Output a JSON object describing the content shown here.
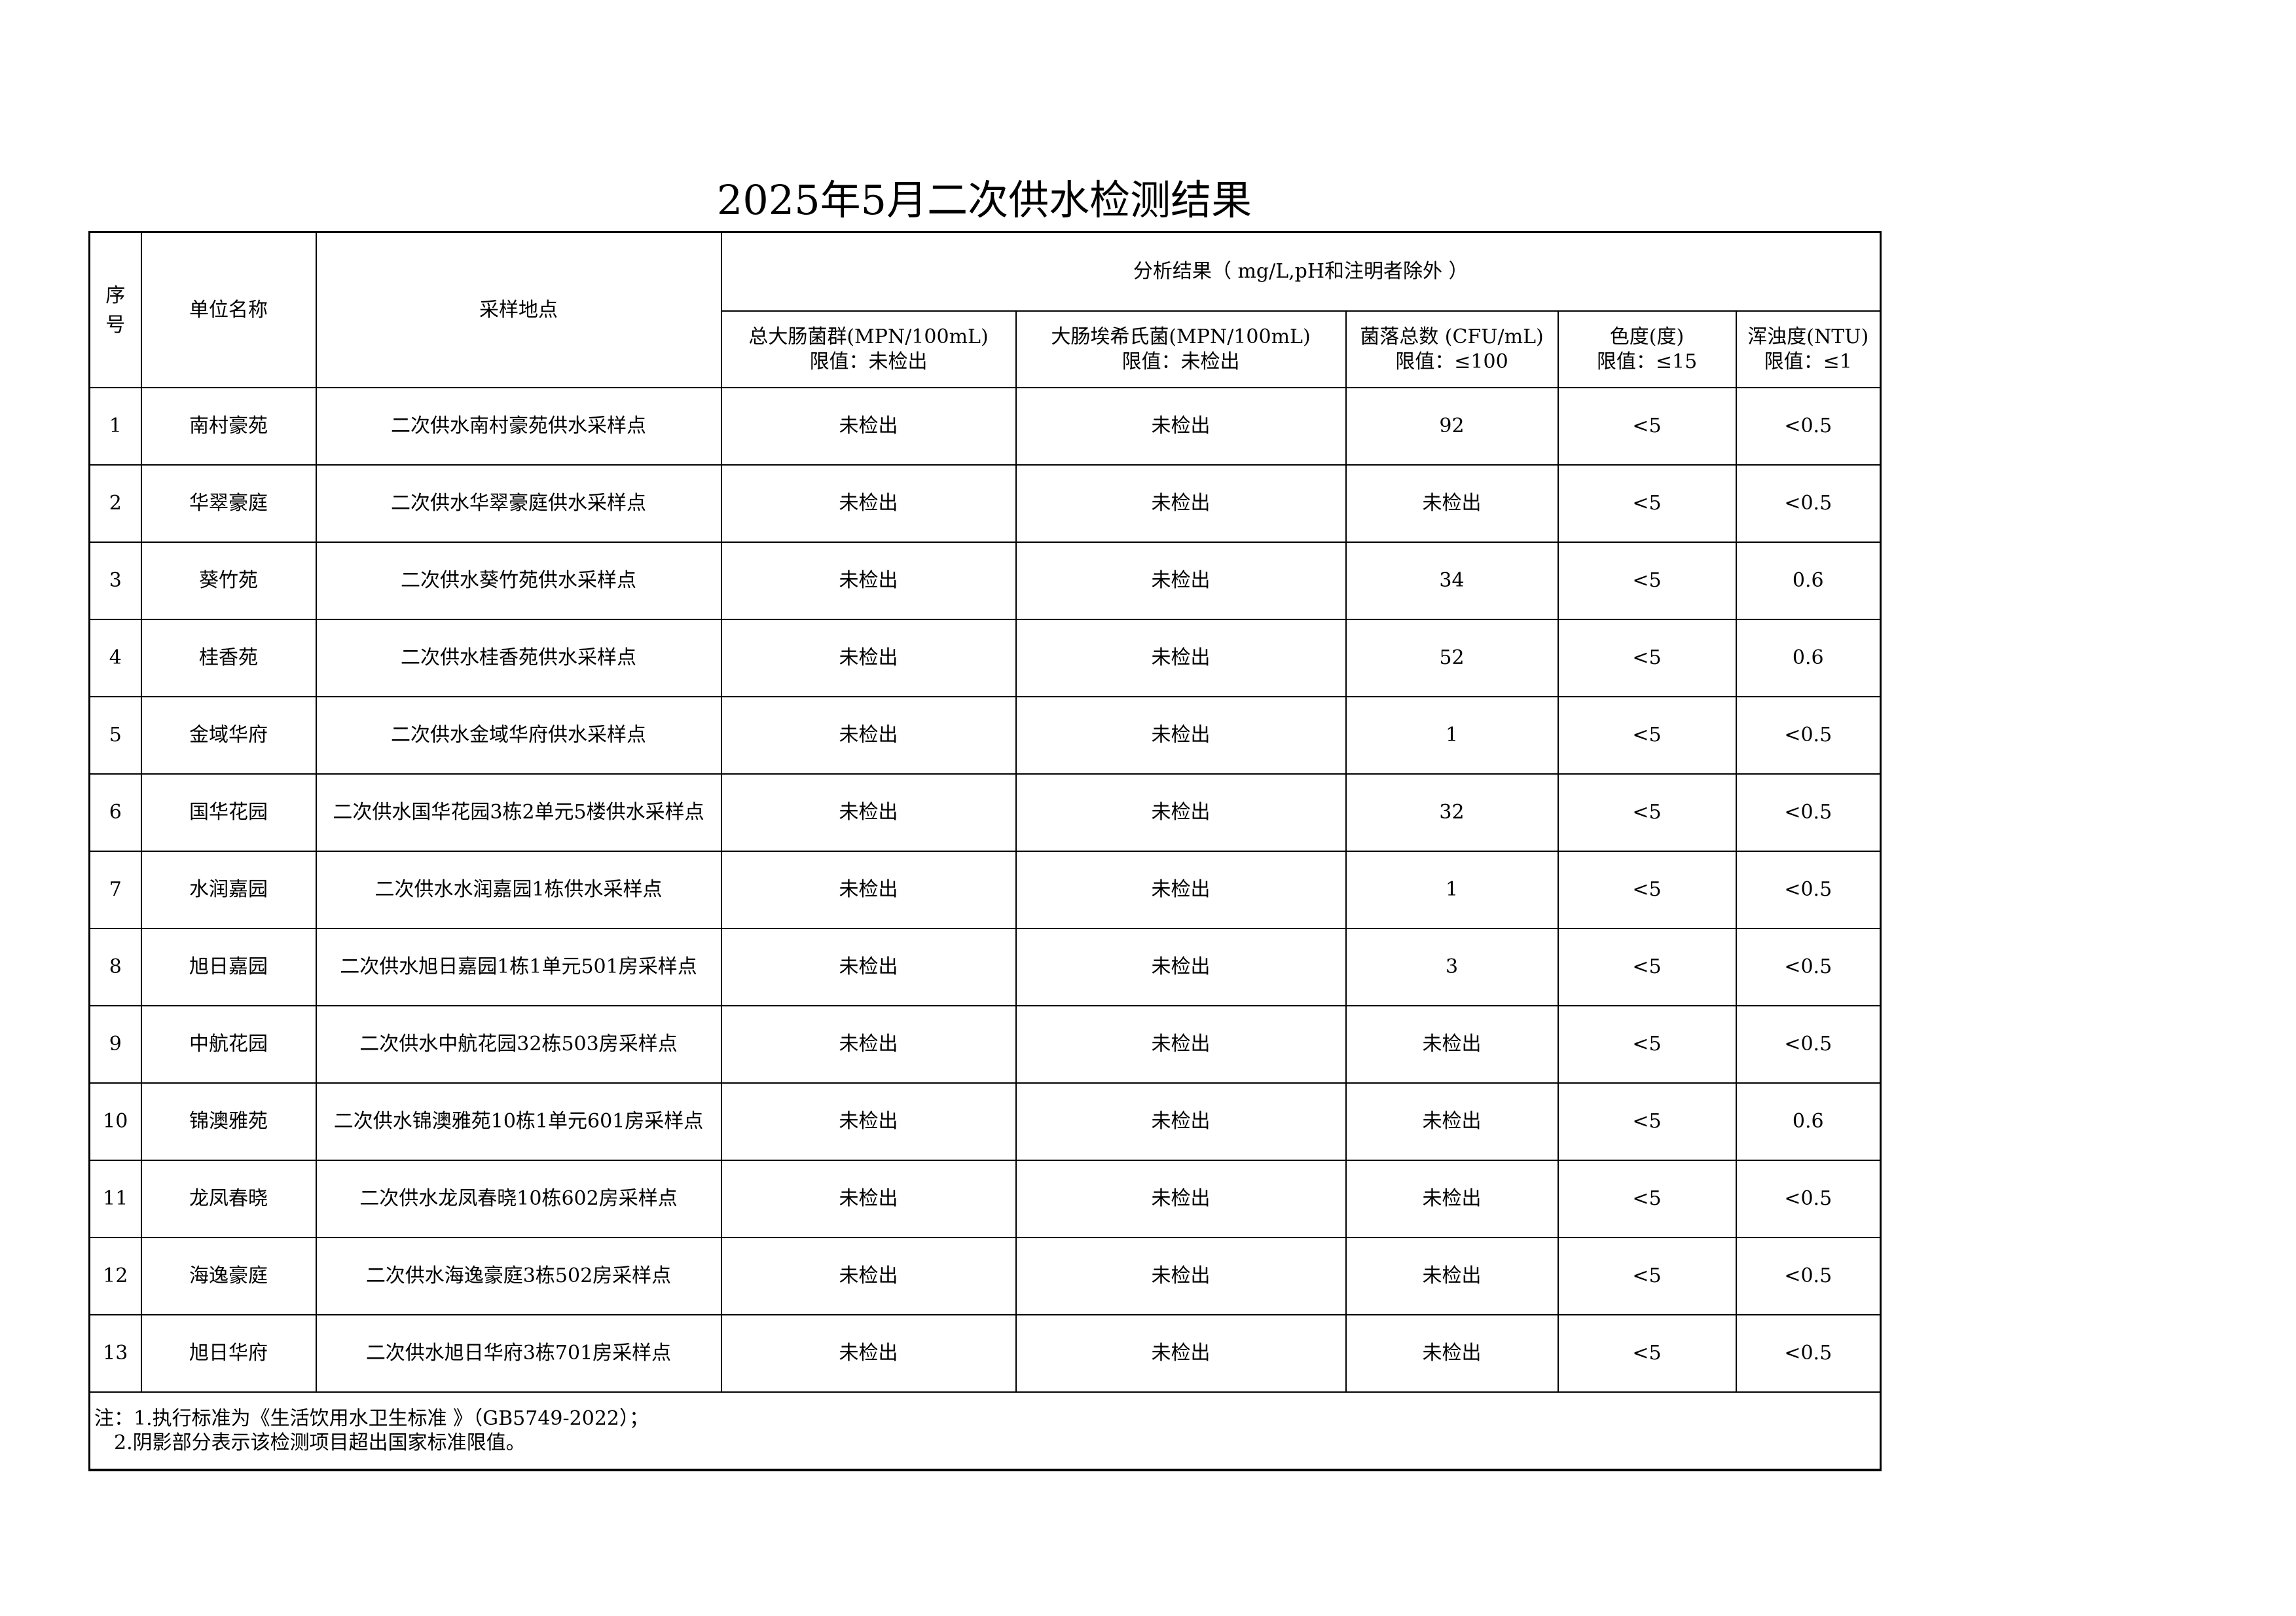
{
  "title": "2025年5月二次供水检测结果",
  "headers": {
    "index": "序号",
    "unit": "单位名称",
    "site": "采样地点",
    "group": "分析结果（ mg/L,pH和注明者除外 ）",
    "cols": [
      {
        "name": "总大肠菌群(MPN/100mL)",
        "limit": "限值：未检出"
      },
      {
        "name": "大肠埃希氏菌(MPN/100mL)",
        "limit": "限值：未检出"
      },
      {
        "name": "菌落总数 (CFU/mL)",
        "limit": "限值：≤100"
      },
      {
        "name": "色度(度)",
        "limit": "限值：≤15"
      },
      {
        "name": "浑浊度(NTU)",
        "limit": "限值：≤1"
      }
    ]
  },
  "rows": [
    [
      "1",
      "南村豪苑",
      "二次供水南村豪苑供水采样点",
      "未检出",
      "未检出",
      "92",
      "<5",
      "<0.5"
    ],
    [
      "2",
      "华翠豪庭",
      "二次供水华翠豪庭供水采样点",
      "未检出",
      "未检出",
      "未检出",
      "<5",
      "<0.5"
    ],
    [
      "3",
      "葵竹苑",
      "二次供水葵竹苑供水采样点",
      "未检出",
      "未检出",
      "34",
      "<5",
      "0.6"
    ],
    [
      "4",
      "桂香苑",
      "二次供水桂香苑供水采样点",
      "未检出",
      "未检出",
      "52",
      "<5",
      "0.6"
    ],
    [
      "5",
      "金域华府",
      "二次供水金域华府供水采样点",
      "未检出",
      "未检出",
      "1",
      "<5",
      "<0.5"
    ],
    [
      "6",
      "国华花园",
      "二次供水国华花园3栋2单元5楼供水采样点",
      "未检出",
      "未检出",
      "32",
      "<5",
      "<0.5"
    ],
    [
      "7",
      "水润嘉园",
      "二次供水水润嘉园1栋供水采样点",
      "未检出",
      "未检出",
      "1",
      "<5",
      "<0.5"
    ],
    [
      "8",
      "旭日嘉园",
      "二次供水旭日嘉园1栋1单元501房采样点",
      "未检出",
      "未检出",
      "3",
      "<5",
      "<0.5"
    ],
    [
      "9",
      "中航花园",
      "二次供水中航花园32栋503房采样点",
      "未检出",
      "未检出",
      "未检出",
      "<5",
      "<0.5"
    ],
    [
      "10",
      "锦澳雅苑",
      "二次供水锦澳雅苑10栋1单元601房采样点",
      "未检出",
      "未检出",
      "未检出",
      "<5",
      "0.6"
    ],
    [
      "11",
      "龙凤春晓",
      "二次供水龙凤春晓10栋602房采样点",
      "未检出",
      "未检出",
      "未检出",
      "<5",
      "<0.5"
    ],
    [
      "12",
      "海逸豪庭",
      "二次供水海逸豪庭3栋502房采样点",
      "未检出",
      "未检出",
      "未检出",
      "<5",
      "<0.5"
    ],
    [
      "13",
      "旭日华府",
      "二次供水旭日华府3栋701房采样点",
      "未检出",
      "未检出",
      "未检出",
      "<5",
      "<0.5"
    ]
  ],
  "notes": [
    "注：1.执行标准为《生活饮用水卫生标准 》（GB5749-2022）；",
    "2.阴影部分表示该检测项目超出国家标准限值。"
  ]
}
